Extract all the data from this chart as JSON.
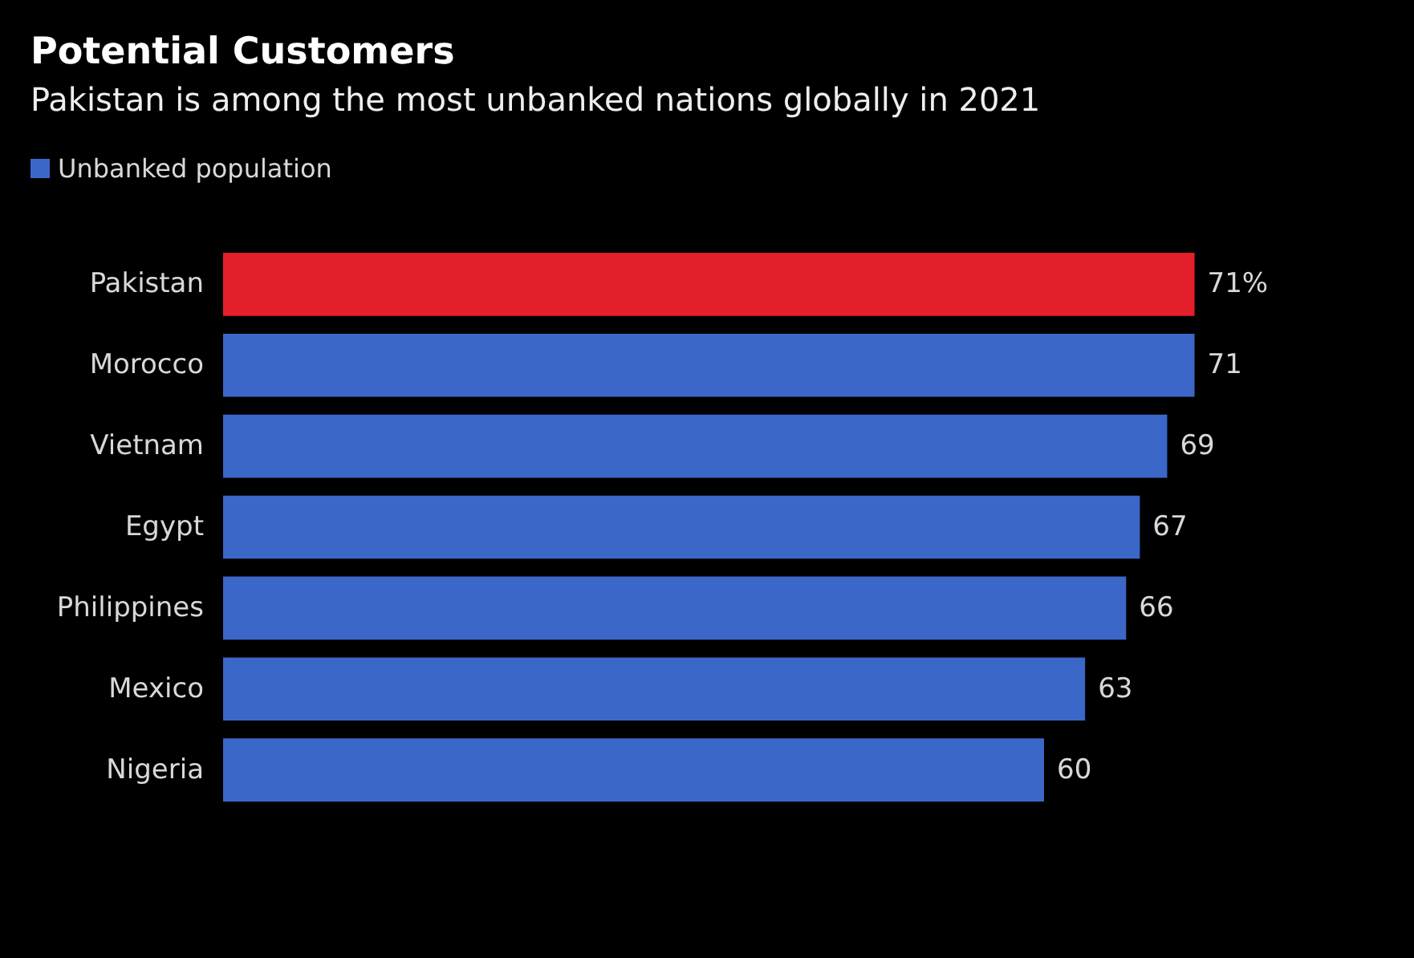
{
  "chart_data": {
    "type": "bar",
    "orientation": "horizontal",
    "title": "Potential Customers",
    "subtitle": "Pakistan is among the most unbanked nations globally in 2021",
    "categories": [
      "Pakistan",
      "Morocco",
      "Vietnam",
      "Egypt",
      "Philippines",
      "Mexico",
      "Nigeria"
    ],
    "series": [
      {
        "name": "Unbanked population",
        "color": "#3b67c9",
        "colors": [
          "#e3202a",
          "#3b67c9",
          "#3b67c9",
          "#3b67c9",
          "#3b67c9",
          "#3b67c9",
          "#3b67c9"
        ],
        "values": [
          71,
          71,
          69,
          67,
          66,
          63,
          60
        ],
        "value_labels": [
          "71%",
          "71",
          "69",
          "67",
          "66",
          "63",
          "60"
        ]
      }
    ],
    "legend": "top left"
  }
}
